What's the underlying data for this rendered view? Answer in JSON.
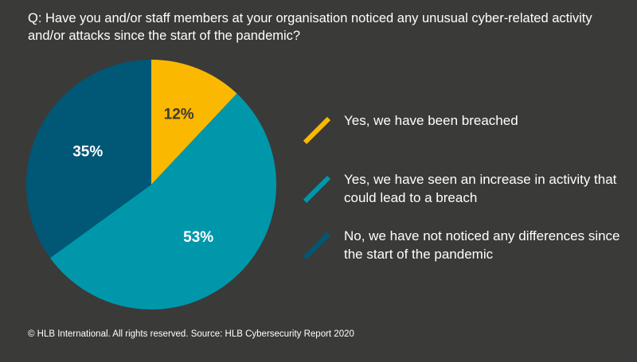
{
  "title": "Q: Have you and/or staff members at your organisation noticed any unusual cyber-related activity and/or attacks since the start of the pandemic?",
  "footer": "© HLB International. All rights reserved. Source: HLB Cybersecurity Report 2020",
  "chart_data": {
    "type": "pie",
    "title": "Q: Have you and/or staff members at your organisation noticed any unusual cyber-related activity and/or attacks since the start of the pandemic?",
    "legend_position": "right",
    "slices": [
      {
        "label": "Yes, we have been breached",
        "value": 12,
        "display": "12%",
        "color": "#fbb800",
        "text_color": "#3a3a39"
      },
      {
        "label": "Yes, we have seen an increase in activity that could lead to a breach",
        "value": 53,
        "display": "53%",
        "color": "#0097ab",
        "text_color": "#ffffff"
      },
      {
        "label": "No, we have not noticed any differences since the start of the pandemic",
        "value": 35,
        "display": "35%",
        "color": "#005776",
        "text_color": "#ffffff"
      }
    ]
  }
}
